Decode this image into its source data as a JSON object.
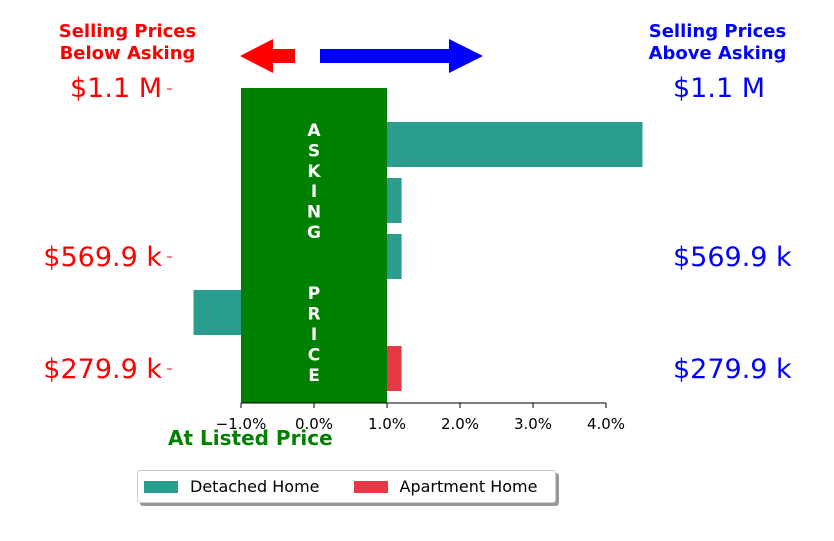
{
  "colors": {
    "below": "#ff0000",
    "above": "#0000ff",
    "asking": "#008000",
    "detached": "#2a9d8f",
    "apartment": "#e63946"
  },
  "header": {
    "left_line1": "Selling Prices",
    "left_line2": "Below Asking",
    "right_line1": "Selling Prices",
    "right_line2": "Above Asking"
  },
  "price_labels": {
    "left": [
      "$1.1 M",
      "$569.9 k",
      "$279.9 k"
    ],
    "right": [
      "$1.1 M",
      "$569.9 k",
      "$279.9 k"
    ]
  },
  "asking_text": "ASKING  PRICE",
  "at_listed_label": "At Listed Price",
  "chart_data": {
    "type": "bar",
    "orientation": "horizontal",
    "xlim": [
      -1.7,
      4.6
    ],
    "xticks": [
      -1.0,
      0.0,
      1.0,
      2.0,
      3.0,
      4.0
    ],
    "xtick_labels": [
      "−1.0%",
      "0.0%",
      "1.0%",
      "2.0%",
      "3.0%",
      "4.0%"
    ],
    "asking_band": [
      -1.0,
      1.0
    ],
    "bars": [
      {
        "series": "Detached Home",
        "row": 0,
        "start": 1.0,
        "value": 4.5
      },
      {
        "series": "Detached Home",
        "row": 1,
        "start": 1.0,
        "value": 1.2
      },
      {
        "series": "Detached Home",
        "row": 2,
        "start": 1.0,
        "value": 1.2
      },
      {
        "series": "Detached Home",
        "row": 3,
        "start": -1.0,
        "value": -1.65
      },
      {
        "series": "Apartment Home",
        "row": 4,
        "start": 1.0,
        "value": 1.2
      }
    ],
    "legend": [
      "Detached Home",
      "Apartment Home"
    ],
    "legend_placement": "bottom-center"
  }
}
